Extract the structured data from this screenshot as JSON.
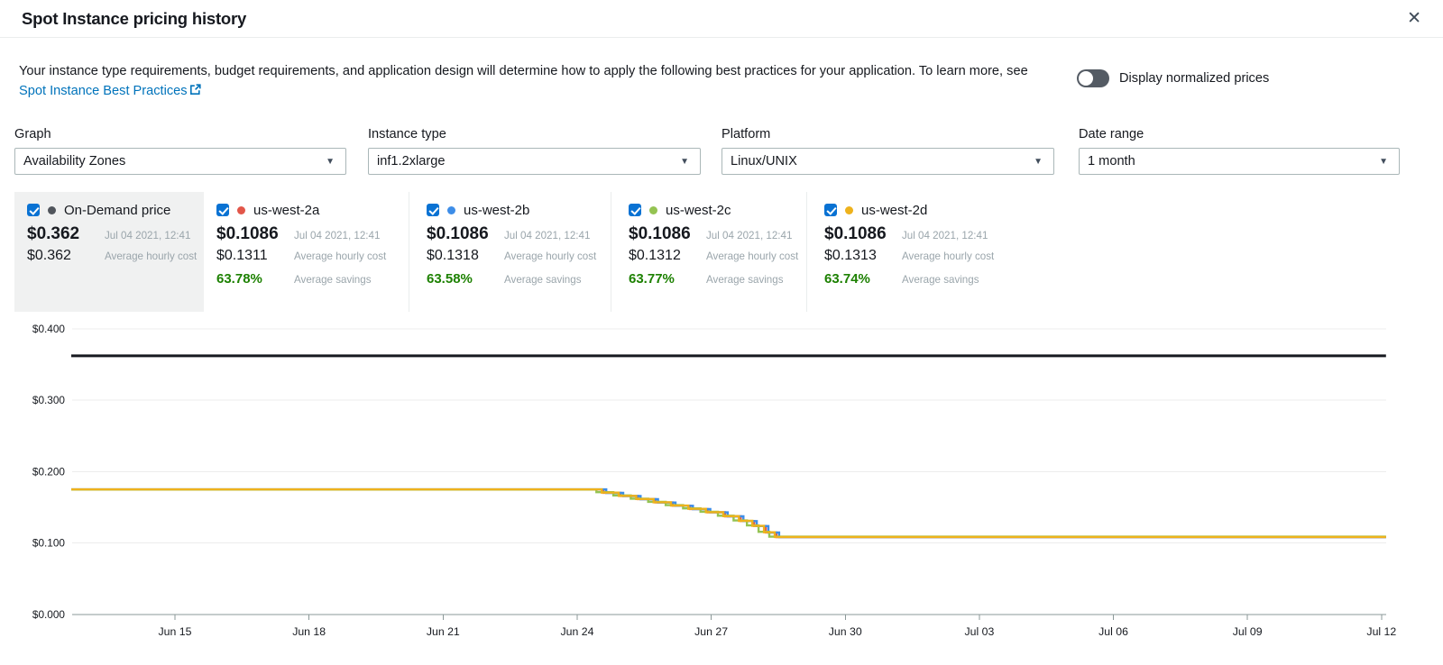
{
  "header": {
    "title": "Spot Instance pricing history",
    "close_icon": "✕"
  },
  "intro": {
    "text_before_link": "Your instance type requirements, budget requirements, and application design will determine how to apply the following best practices for your application. To learn more, see ",
    "link_text": "Spot Instance Best Practices"
  },
  "toggle": {
    "label": "Display normalized prices",
    "state": "off"
  },
  "filters": [
    {
      "label": "Graph",
      "value": "Availability Zones"
    },
    {
      "label": "Instance type",
      "value": "inf1.2xlarge"
    },
    {
      "label": "Platform",
      "value": "Linux/UNIX"
    },
    {
      "label": "Date range",
      "value": "1 month"
    }
  ],
  "colors": {
    "checkbox_blue": "#0972d3",
    "link_blue": "#0073bb",
    "savings_green": "#1d8102",
    "muted_text": "#9aa5ab"
  },
  "legend_cards": [
    {
      "name": "On-Demand price",
      "checked": true,
      "highlighted": true,
      "dot_color": "#50555c",
      "price": "$0.362",
      "price_time": "Jul 04 2021, 12:41",
      "avg_cost": "$0.362",
      "avg_cost_label": "Average hourly cost"
    },
    {
      "name": "us-west-2a",
      "checked": true,
      "highlighted": false,
      "dot_color": "#e25649",
      "price": "$0.1086",
      "price_time": "Jul 04 2021, 12:41",
      "avg_cost": "$0.1311",
      "avg_cost_label": "Average hourly cost",
      "savings": "63.78%",
      "savings_label": "Average savings"
    },
    {
      "name": "us-west-2b",
      "checked": true,
      "highlighted": false,
      "dot_color": "#3d8de8",
      "price": "$0.1086",
      "price_time": "Jul 04 2021, 12:41",
      "avg_cost": "$0.1318",
      "avg_cost_label": "Average hourly cost",
      "savings": "63.58%",
      "savings_label": "Average savings"
    },
    {
      "name": "us-west-2c",
      "checked": true,
      "highlighted": false,
      "dot_color": "#94c352",
      "price": "$0.1086",
      "price_time": "Jul 04 2021, 12:41",
      "avg_cost": "$0.1312",
      "avg_cost_label": "Average hourly cost",
      "savings": "63.77%",
      "savings_label": "Average savings"
    },
    {
      "name": "us-west-2d",
      "checked": true,
      "highlighted": false,
      "dot_color": "#eeb21c",
      "price": "$0.1086",
      "price_time": "Jul 04 2021, 12:41",
      "avg_cost": "$0.1313",
      "avg_cost_label": "Average hourly cost",
      "savings": "63.74%",
      "savings_label": "Average savings"
    }
  ],
  "chart_data": {
    "type": "line",
    "title": "Spot Instance pricing history (1 month, inf1.2xlarge, Linux/UNIX)",
    "x_unit": "days relative to Jun 15 2021",
    "x_range_days": [
      -2.32,
      27.1
    ],
    "ylim": [
      0,
      0.42
    ],
    "grid": true,
    "legend_position": "top",
    "y_ticks": [
      {
        "label": "$0.400",
        "value": 0.4
      },
      {
        "label": "$0.300",
        "value": 0.3
      },
      {
        "label": "$0.200",
        "value": 0.2
      },
      {
        "label": "$0.100",
        "value": 0.1
      },
      {
        "label": "$0.000",
        "value": 0.0
      }
    ],
    "x_ticks": [
      {
        "label": "Jun 15",
        "day": 0
      },
      {
        "label": "Jun 18",
        "day": 3
      },
      {
        "label": "Jun 21",
        "day": 6
      },
      {
        "label": "Jun 24",
        "day": 9
      },
      {
        "label": "Jun 27",
        "day": 12
      },
      {
        "label": "Jun 30",
        "day": 15
      },
      {
        "label": "Jul 03",
        "day": 18
      },
      {
        "label": "Jul 06",
        "day": 21
      },
      {
        "label": "Jul 09",
        "day": 24
      },
      {
        "label": "Jul 12",
        "day": 27
      }
    ],
    "series": [
      {
        "name": "On-Demand price",
        "color": "#16191f",
        "width": 3,
        "points": [
          [
            -2.32,
            0.362
          ],
          [
            27.1,
            0.362
          ]
        ]
      },
      {
        "name": "us-west-2a",
        "color": "#e25649",
        "width": 2.4,
        "points": [
          [
            -2.32,
            0.175
          ],
          [
            9.59,
            0.1704
          ],
          [
            9.97,
            0.1659
          ],
          [
            10.36,
            0.1615
          ],
          [
            10.75,
            0.1569
          ],
          [
            11.14,
            0.1523
          ],
          [
            11.53,
            0.1477
          ],
          [
            11.92,
            0.1431
          ],
          [
            12.31,
            0.1375
          ],
          [
            12.66,
            0.1309
          ],
          [
            12.96,
            0.1239
          ],
          [
            13.22,
            0.1149
          ],
          [
            13.46,
            0.1084
          ],
          [
            27.1,
            0.1084
          ]
        ]
      },
      {
        "name": "us-west-2b",
        "color": "#3d8de8",
        "width": 2.4,
        "points": [
          [
            -2.32,
            0.1752
          ],
          [
            9.65,
            0.1703
          ],
          [
            10.03,
            0.1658
          ],
          [
            10.42,
            0.1614
          ],
          [
            10.81,
            0.1568
          ],
          [
            11.2,
            0.1522
          ],
          [
            11.59,
            0.1476
          ],
          [
            11.98,
            0.143
          ],
          [
            12.37,
            0.1374
          ],
          [
            12.72,
            0.1308
          ],
          [
            13.02,
            0.1238
          ],
          [
            13.28,
            0.1148
          ],
          [
            13.52,
            0.1083
          ],
          [
            27.1,
            0.1083
          ]
        ]
      },
      {
        "name": "us-west-2c",
        "color": "#94c352",
        "width": 2.4,
        "points": [
          [
            -2.32,
            0.1749
          ],
          [
            9.43,
            0.1712
          ],
          [
            9.81,
            0.1667
          ],
          [
            10.2,
            0.1622
          ],
          [
            10.59,
            0.1577
          ],
          [
            10.98,
            0.1531
          ],
          [
            11.37,
            0.1485
          ],
          [
            11.76,
            0.1439
          ],
          [
            12.15,
            0.1383
          ],
          [
            12.5,
            0.1317
          ],
          [
            12.8,
            0.1247
          ],
          [
            13.06,
            0.1157
          ],
          [
            13.3,
            0.109
          ],
          [
            27.1,
            0.109
          ]
        ]
      },
      {
        "name": "us-west-2d",
        "color": "#eeb21c",
        "width": 2.4,
        "points": [
          [
            -2.32,
            0.1751
          ],
          [
            9.55,
            0.1706
          ],
          [
            9.93,
            0.1661
          ],
          [
            10.32,
            0.1617
          ],
          [
            10.71,
            0.1571
          ],
          [
            11.1,
            0.1525
          ],
          [
            11.49,
            0.1479
          ],
          [
            11.88,
            0.1433
          ],
          [
            12.27,
            0.1377
          ],
          [
            12.62,
            0.1311
          ],
          [
            12.92,
            0.1241
          ],
          [
            13.18,
            0.1151
          ],
          [
            13.42,
            0.1086
          ],
          [
            27.1,
            0.1086
          ]
        ]
      }
    ]
  }
}
